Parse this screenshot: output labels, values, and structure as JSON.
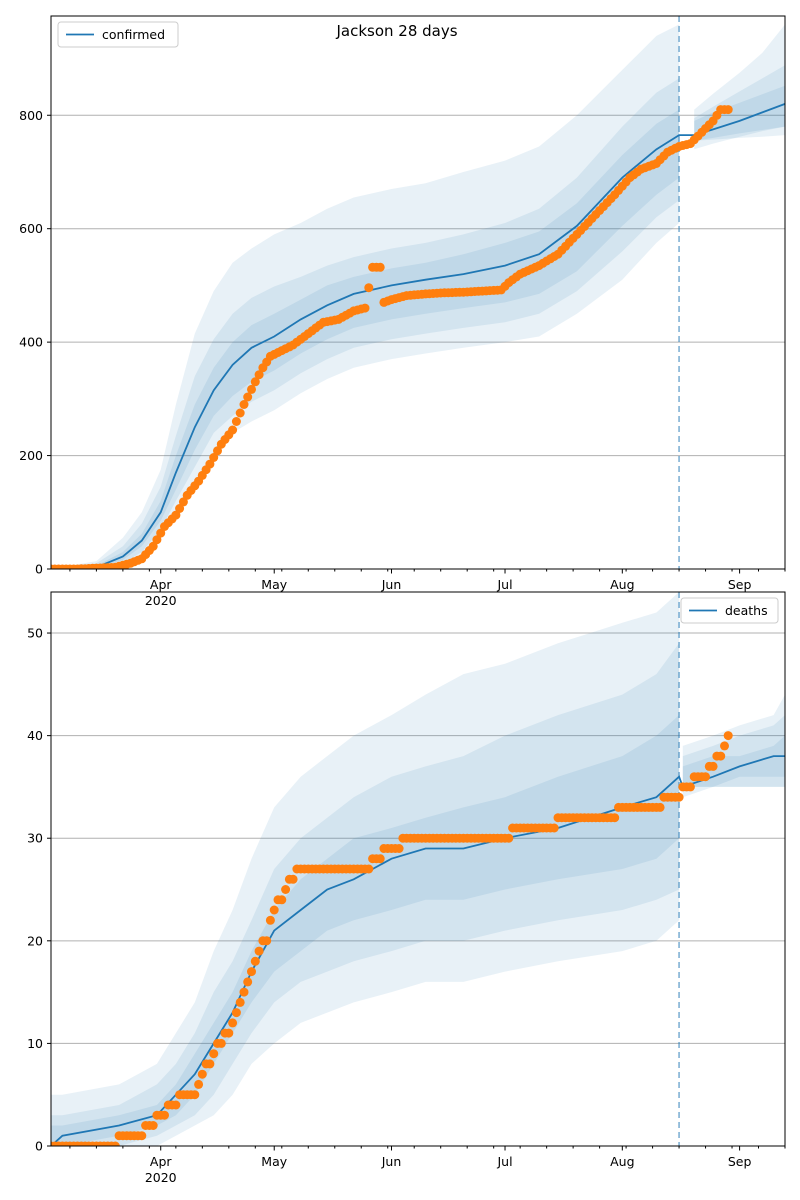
{
  "title": "Jackson 28 days",
  "colors": {
    "model": "#1f77b4",
    "observed": "#ff7f0e",
    "band": "#1f77b4",
    "grid": "#b0b0b0"
  },
  "chart_data": [
    {
      "type": "line",
      "legend": "confirmed",
      "legend_position": "top-left",
      "grid": "horizontal",
      "xlim": [
        "2020-03-03",
        "2020-09-13"
      ],
      "ylim": [
        0,
        975
      ],
      "yticks": [
        0,
        200,
        400,
        600,
        800
      ],
      "forecast_start": "2020-08-16",
      "xtick_labels": [
        {
          "date": "2020-04-01",
          "label": "Apr",
          "sublabel": "2020"
        },
        {
          "date": "2020-05-01",
          "label": "May",
          "sublabel": ""
        },
        {
          "date": "2020-06-01",
          "label": "Jun",
          "sublabel": ""
        },
        {
          "date": "2020-07-01",
          "label": "Jul",
          "sublabel": ""
        },
        {
          "date": "2020-08-01",
          "label": "Aug",
          "sublabel": ""
        },
        {
          "date": "2020-09-01",
          "label": "Sep",
          "sublabel": ""
        }
      ],
      "model": {
        "x": [
          "2020-03-03",
          "2020-03-15",
          "2020-03-22",
          "2020-03-27",
          "2020-04-01",
          "2020-04-05",
          "2020-04-10",
          "2020-04-15",
          "2020-04-20",
          "2020-04-25",
          "2020-05-01",
          "2020-05-08",
          "2020-05-15",
          "2020-05-22",
          "2020-06-01",
          "2020-06-10",
          "2020-06-20",
          "2020-07-01",
          "2020-07-10",
          "2020-07-20",
          "2020-08-01",
          "2020-08-10",
          "2020-08-16",
          "2020-08-20",
          "2020-08-25",
          "2020-09-01",
          "2020-09-07",
          "2020-09-13"
        ],
        "median": [
          0,
          3,
          22,
          50,
          100,
          170,
          250,
          315,
          360,
          390,
          410,
          440,
          465,
          485,
          500,
          510,
          520,
          535,
          555,
          605,
          690,
          740,
          765,
          765,
          775,
          790,
          805,
          820
        ],
        "band_inner": [
          [
            0,
            0
          ],
          [
            1,
            6
          ],
          [
            16,
            30
          ],
          [
            40,
            62
          ],
          [
            85,
            120
          ],
          [
            140,
            200
          ],
          [
            210,
            290
          ],
          [
            270,
            355
          ],
          [
            305,
            400
          ],
          [
            330,
            430
          ],
          [
            350,
            450
          ],
          [
            380,
            475
          ],
          [
            405,
            500
          ],
          [
            425,
            515
          ],
          [
            440,
            530
          ],
          [
            450,
            540
          ],
          [
            460,
            555
          ],
          [
            470,
            575
          ],
          [
            485,
            595
          ],
          [
            525,
            645
          ],
          [
            605,
            730
          ],
          [
            660,
            785
          ],
          [
            690,
            810
          ],
          [
            740,
            790
          ],
          [
            750,
            805
          ],
          [
            762,
            822
          ],
          [
            772,
            837
          ],
          [
            780,
            852
          ]
        ],
        "band_mid": [
          [
            0,
            0
          ],
          [
            0,
            10
          ],
          [
            10,
            40
          ],
          [
            30,
            80
          ],
          [
            70,
            145
          ],
          [
            120,
            235
          ],
          [
            180,
            340
          ],
          [
            240,
            405
          ],
          [
            270,
            450
          ],
          [
            295,
            478
          ],
          [
            315,
            498
          ],
          [
            345,
            515
          ],
          [
            370,
            535
          ],
          [
            390,
            550
          ],
          [
            405,
            565
          ],
          [
            415,
            575
          ],
          [
            425,
            590
          ],
          [
            435,
            610
          ],
          [
            450,
            635
          ],
          [
            490,
            690
          ],
          [
            560,
            780
          ],
          [
            620,
            840
          ],
          [
            650,
            865
          ],
          [
            755,
            795
          ],
          [
            760,
            815
          ],
          [
            768,
            842
          ],
          [
            774,
            865
          ],
          [
            780,
            888
          ]
        ],
        "band_outer": [
          [
            0,
            0
          ],
          [
            0,
            14
          ],
          [
            5,
            55
          ],
          [
            20,
            100
          ],
          [
            55,
            175
          ],
          [
            100,
            290
          ],
          [
            150,
            415
          ],
          [
            205,
            490
          ],
          [
            240,
            540
          ],
          [
            260,
            565
          ],
          [
            280,
            590
          ],
          [
            310,
            610
          ],
          [
            335,
            635
          ],
          [
            355,
            655
          ],
          [
            370,
            670
          ],
          [
            380,
            680
          ],
          [
            390,
            700
          ],
          [
            400,
            720
          ],
          [
            410,
            745
          ],
          [
            450,
            800
          ],
          [
            510,
            880
          ],
          [
            575,
            940
          ],
          [
            610,
            960
          ],
          [
            755,
            810
          ],
          [
            757,
            838
          ],
          [
            760,
            875
          ],
          [
            762,
            910
          ],
          [
            765,
            960
          ]
        ]
      },
      "observed": {
        "x": [
          "2020-03-03",
          "2020-03-10",
          "2020-03-20",
          "2020-03-24",
          "2020-03-27",
          "2020-03-30",
          "2020-04-02",
          "2020-04-05",
          "2020-04-08",
          "2020-04-11",
          "2020-04-14",
          "2020-04-17",
          "2020-04-20",
          "2020-04-23",
          "2020-04-26",
          "2020-04-28",
          "2020-04-30",
          "2020-05-03",
          "2020-05-06",
          "2020-05-10",
          "2020-05-14",
          "2020-05-18",
          "2020-05-22",
          "2020-05-25",
          "2020-05-27",
          "2020-05-28",
          "2020-05-29",
          "2020-05-30",
          "2020-06-01",
          "2020-06-05",
          "2020-06-10",
          "2020-06-15",
          "2020-06-20",
          "2020-06-25",
          "2020-06-30",
          "2020-07-02",
          "2020-07-05",
          "2020-07-10",
          "2020-07-15",
          "2020-07-20",
          "2020-07-25",
          "2020-07-30",
          "2020-08-03",
          "2020-08-06",
          "2020-08-10",
          "2020-08-13",
          "2020-08-16",
          "2020-08-19",
          "2020-08-22",
          "2020-08-25",
          "2020-08-27",
          "2020-08-29"
        ],
        "y": [
          0,
          0,
          3,
          10,
          18,
          40,
          75,
          95,
          130,
          155,
          185,
          220,
          245,
          290,
          330,
          355,
          375,
          385,
          395,
          415,
          435,
          440,
          455,
          460,
          532,
          532,
          532,
          470,
          475,
          482,
          485,
          487,
          488,
          490,
          492,
          505,
          520,
          535,
          555,
          590,
          625,
          660,
          690,
          705,
          715,
          735,
          745,
          750,
          770,
          790,
          810,
          810
        ]
      }
    },
    {
      "type": "line",
      "legend": "deaths",
      "legend_position": "top-right",
      "grid": "horizontal",
      "xlim": [
        "2020-03-03",
        "2020-09-13"
      ],
      "ylim": [
        0,
        54
      ],
      "yticks": [
        0,
        10,
        20,
        30,
        40,
        50
      ],
      "forecast_start": "2020-08-16",
      "xtick_labels": [
        {
          "date": "2020-04-01",
          "label": "Apr",
          "sublabel": "2020"
        },
        {
          "date": "2020-05-01",
          "label": "May",
          "sublabel": ""
        },
        {
          "date": "2020-06-01",
          "label": "Jun",
          "sublabel": ""
        },
        {
          "date": "2020-07-01",
          "label": "Jul",
          "sublabel": ""
        },
        {
          "date": "2020-08-01",
          "label": "Aug",
          "sublabel": ""
        },
        {
          "date": "2020-09-01",
          "label": "Sep",
          "sublabel": ""
        }
      ],
      "model": {
        "x": [
          "2020-03-03",
          "2020-03-06",
          "2020-03-21",
          "2020-03-31",
          "2020-04-05",
          "2020-04-10",
          "2020-04-15",
          "2020-04-20",
          "2020-04-25",
          "2020-05-01",
          "2020-05-08",
          "2020-05-15",
          "2020-05-22",
          "2020-06-01",
          "2020-06-10",
          "2020-06-20",
          "2020-07-01",
          "2020-07-15",
          "2020-08-01",
          "2020-08-10",
          "2020-08-16",
          "2020-08-17",
          "2020-08-25",
          "2020-09-01",
          "2020-09-10",
          "2020-09-13"
        ],
        "median": [
          0,
          1,
          2,
          3,
          5,
          7,
          10,
          13,
          17,
          21,
          23,
          25,
          26,
          28,
          29,
          29,
          30,
          31,
          33,
          34,
          36,
          35,
          36,
          37,
          38,
          38
        ],
        "band_inner": [
          [
            0,
            2
          ],
          [
            0,
            2
          ],
          [
            1,
            3
          ],
          [
            2,
            4
          ],
          [
            3,
            6
          ],
          [
            5,
            9
          ],
          [
            8,
            12
          ],
          [
            11,
            15
          ],
          [
            14,
            19
          ],
          [
            17,
            23
          ],
          [
            19,
            26
          ],
          [
            21,
            28
          ],
          [
            22,
            30
          ],
          [
            23,
            31
          ],
          [
            24,
            32
          ],
          [
            24,
            33
          ],
          [
            25,
            34
          ],
          [
            26,
            36
          ],
          [
            27,
            38
          ],
          [
            28,
            40
          ],
          [
            30,
            42
          ],
          [
            35,
            37
          ],
          [
            35,
            38
          ],
          [
            36,
            38
          ],
          [
            36,
            39
          ],
          [
            36,
            40
          ]
        ],
        "band_mid": [
          [
            0,
            3
          ],
          [
            0,
            3
          ],
          [
            0,
            4
          ],
          [
            1,
            6
          ],
          [
            2,
            8
          ],
          [
            3,
            11
          ],
          [
            5,
            15
          ],
          [
            8,
            18
          ],
          [
            11,
            22
          ],
          [
            14,
            27
          ],
          [
            16,
            30
          ],
          [
            17,
            32
          ],
          [
            18,
            34
          ],
          [
            19,
            36
          ],
          [
            20,
            37
          ],
          [
            20,
            38
          ],
          [
            21,
            40
          ],
          [
            22,
            42
          ],
          [
            23,
            44
          ],
          [
            24,
            46
          ],
          [
            25,
            49
          ],
          [
            35,
            38
          ],
          [
            35,
            39
          ],
          [
            35,
            40
          ],
          [
            35,
            41
          ],
          [
            35,
            42
          ]
        ],
        "band_outer": [
          [
            0,
            5
          ],
          [
            0,
            5
          ],
          [
            0,
            6
          ],
          [
            0,
            8
          ],
          [
            1,
            11
          ],
          [
            2,
            14
          ],
          [
            3,
            19
          ],
          [
            5,
            23
          ],
          [
            8,
            28
          ],
          [
            10,
            33
          ],
          [
            12,
            36
          ],
          [
            13,
            38
          ],
          [
            14,
            40
          ],
          [
            15,
            42
          ],
          [
            16,
            44
          ],
          [
            16,
            46
          ],
          [
            17,
            47
          ],
          [
            18,
            49
          ],
          [
            19,
            51
          ],
          [
            20,
            52
          ],
          [
            22,
            54
          ],
          [
            34,
            39
          ],
          [
            35,
            40
          ],
          [
            35,
            41
          ],
          [
            35,
            42
          ],
          [
            35,
            44
          ]
        ]
      },
      "observed": {
        "x": [
          "2020-03-03",
          "2020-03-15",
          "2020-03-27",
          "2020-03-29",
          "2020-04-01",
          "2020-04-04",
          "2020-04-07",
          "2020-04-10",
          "2020-04-12",
          "2020-04-15",
          "2020-04-17",
          "2020-04-19",
          "2020-04-21",
          "2020-04-23",
          "2020-04-25",
          "2020-04-27",
          "2020-04-29",
          "2020-05-01",
          "2020-05-04",
          "2020-05-08",
          "2020-05-15",
          "2020-05-22",
          "2020-05-26",
          "2020-05-28",
          "2020-06-01",
          "2020-06-06",
          "2020-06-15",
          "2020-06-25",
          "2020-07-01",
          "2020-07-05",
          "2020-07-10",
          "2020-07-20",
          "2020-07-30",
          "2020-08-01",
          "2020-08-08",
          "2020-08-15",
          "2020-08-18",
          "2020-08-21",
          "2020-08-23",
          "2020-08-25",
          "2020-08-27",
          "2020-08-29"
        ],
        "y": [
          0,
          0,
          1,
          2,
          3,
          4,
          5,
          5,
          7,
          9,
          10,
          11,
          13,
          15,
          17,
          19,
          20,
          23,
          25,
          27,
          27,
          27,
          27,
          28,
          29,
          30,
          30,
          30,
          30,
          31,
          31,
          32,
          32,
          33,
          33,
          34,
          35,
          36,
          36,
          37,
          38,
          40
        ]
      }
    }
  ]
}
